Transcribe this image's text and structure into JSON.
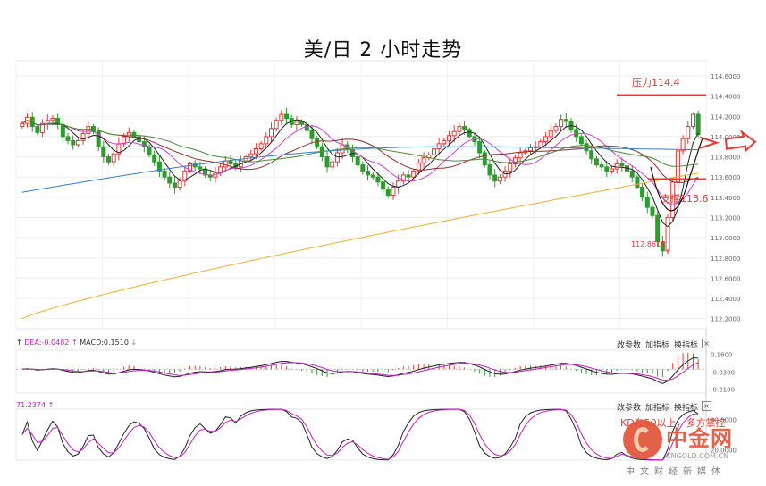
{
  "title": "美/日 2 小时走势",
  "chart_data": [
    {
      "type": "candlestick",
      "title": "美/日 2 小时走势",
      "y_ticks": [
        "114.6000",
        "114.4000",
        "114.2000",
        "114.0000",
        "113.8000",
        "113.6000",
        "113.4000",
        "113.2000",
        "113.0000",
        "112.8000",
        "112.6000",
        "112.4000",
        "112.2000"
      ],
      "ylim": [
        112.1,
        114.75
      ],
      "grid": true,
      "resistance": {
        "label": "压力114.4",
        "value": 114.41
      },
      "support": {
        "label": "支撑113.6",
        "value": 113.58
      },
      "low_marker": {
        "label": "112.8610",
        "value": 112.861
      },
      "close": [
        114.13,
        114.19,
        114.1,
        114.04,
        114.13,
        114.16,
        114.18,
        114.12,
        114.0,
        113.96,
        113.92,
        113.96,
        114.03,
        114.1,
        114.05,
        113.9,
        113.8,
        113.75,
        113.83,
        113.93,
        114.0,
        114.04,
        114.0,
        113.95,
        113.9,
        113.82,
        113.75,
        113.66,
        113.6,
        113.54,
        113.5,
        113.56,
        113.66,
        113.73,
        113.7,
        113.68,
        113.62,
        113.6,
        113.64,
        113.7,
        113.76,
        113.73,
        113.7,
        113.76,
        113.8,
        113.83,
        113.88,
        113.93,
        114.0,
        114.08,
        114.16,
        114.22,
        114.18,
        114.12,
        114.15,
        114.12,
        114.06,
        113.98,
        113.9,
        113.8,
        113.7,
        113.75,
        113.84,
        113.92,
        113.87,
        113.8,
        113.72,
        113.66,
        113.62,
        113.6,
        113.55,
        113.48,
        113.42,
        113.5,
        113.56,
        113.62,
        113.6,
        113.66,
        113.74,
        113.79,
        113.82,
        113.88,
        113.93,
        113.96,
        114.01,
        114.05,
        114.1,
        114.07,
        114.0,
        113.95,
        113.84,
        113.72,
        113.62,
        113.56,
        113.6,
        113.66,
        113.73,
        113.79,
        113.84,
        113.86,
        113.89,
        113.9,
        113.95,
        114.0,
        114.06,
        114.1,
        114.17,
        114.15,
        114.07,
        114.0,
        113.93,
        113.86,
        113.78,
        113.72,
        113.7,
        113.66,
        113.68,
        113.73,
        113.71,
        113.66,
        113.6,
        113.5,
        113.4,
        113.3,
        113.22,
        112.96,
        112.87,
        113.2,
        113.55,
        113.86,
        113.98,
        114.1,
        114.22,
        114.02
      ],
      "ma": [
        {
          "period": 5,
          "color": "#222222"
        },
        {
          "period": 10,
          "color": "#d040d0"
        },
        {
          "period": 20,
          "color": "#8b2f2f"
        },
        {
          "period": 30,
          "color": "#4a8c3a"
        },
        {
          "period": 60,
          "color": "#3a7ec8"
        },
        {
          "period": 120,
          "color": "#f0b030"
        }
      ]
    },
    {
      "type": "bar+line",
      "name": "MACD",
      "legend": {
        "dea": "DEA:-0.0482",
        "macd": "MACD:0.1510"
      },
      "y_ticks": [
        "0.1600",
        "-0.0300",
        "-0.2100"
      ],
      "ylim": [
        -0.25,
        0.2
      ]
    },
    {
      "type": "line",
      "name": "KD",
      "legend": "71.2374",
      "y_ticks": [
        "80.0000",
        "20.0000"
      ],
      "ylim": [
        0,
        100
      ],
      "annotation": "KD在50以上，多方掌控"
    }
  ],
  "buttons": {
    "change_params": "改参数",
    "add_indicator": "加指标",
    "swap_indicator": "换指标",
    "close": "×"
  },
  "watermark": {
    "name": "中金网",
    "url": "CNGOLD.COM.CN",
    "tagline": "中文财经新媒体"
  },
  "colors": {
    "up": "#e53935",
    "down": "#2e9b2e",
    "resistance": "#e53935",
    "support": "#e53935",
    "arrow": "#e53935"
  }
}
